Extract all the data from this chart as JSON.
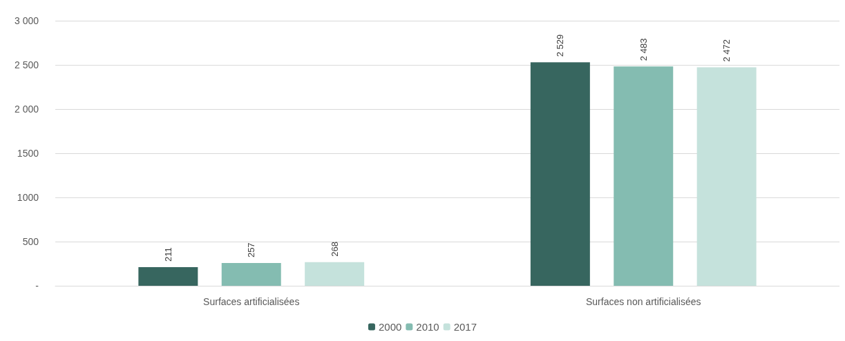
{
  "chart_data": {
    "type": "bar",
    "categories": [
      "Surfaces artificialisées",
      "Surfaces non artificialisées"
    ],
    "series": [
      {
        "name": "2000",
        "color": "#37665f",
        "values": [
          211,
          2529
        ],
        "value_labels": [
          "211",
          "2 529"
        ]
      },
      {
        "name": "2010",
        "color": "#84bcb1",
        "values": [
          257,
          2483
        ],
        "value_labels": [
          "257",
          "2 483"
        ]
      },
      {
        "name": "2017",
        "color": "#c5e2dc",
        "values": [
          268,
          2472
        ],
        "value_labels": [
          "268",
          "2 472"
        ]
      }
    ],
    "ylim": [
      0,
      3000
    ],
    "yticks": [
      {
        "value": 0,
        "label": "-"
      },
      500,
      1000,
      1500,
      {
        "value": 2000,
        "label": "2 000"
      },
      {
        "value": 2500,
        "label": "2 500"
      },
      {
        "value": 3000,
        "label": "3 000"
      }
    ],
    "grid": "y",
    "legend": "bottom"
  }
}
